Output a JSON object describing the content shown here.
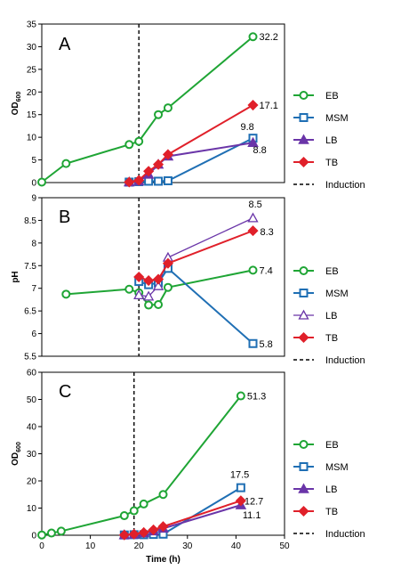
{
  "colors": {
    "EB": "#1fa535",
    "MSM": "#1f6fb4",
    "LB": "#6a35a8",
    "TB": "#e0202a",
    "induction": "#000000"
  },
  "chart_data": [
    {
      "type": "line",
      "panel_label": "A",
      "ylabel": "OD600",
      "ylabel_main": "OD",
      "ylabel_sub": "600",
      "xlabel": "",
      "xlim": [
        0,
        50
      ],
      "ylim": [
        0,
        35
      ],
      "yticks": [
        0,
        5,
        10,
        15,
        20,
        25,
        30,
        35
      ],
      "xticks": [],
      "induction_x": 20,
      "legend": [
        "EB",
        "MSM",
        "LB",
        "TB",
        "Induction"
      ],
      "legend_position": "right",
      "series": [
        {
          "name": "EB",
          "marker": "circle",
          "points": [
            [
              0,
              0.1
            ],
            [
              5,
              4.2
            ],
            [
              18,
              8.4
            ],
            [
              20,
              9.1
            ],
            [
              24,
              15.0
            ],
            [
              26,
              16.5
            ],
            [
              43.5,
              32.2
            ]
          ]
        },
        {
          "name": "MSM",
          "marker": "square",
          "points": [
            [
              18,
              0.1
            ],
            [
              20,
              0.2
            ],
            [
              22,
              0.3
            ],
            [
              24,
              0.3
            ],
            [
              26,
              0.4
            ],
            [
              43.5,
              9.8
            ]
          ]
        },
        {
          "name": "LB",
          "marker": "triangle",
          "points": [
            [
              18,
              0.1
            ],
            [
              20,
              0.3
            ],
            [
              22,
              1.8
            ],
            [
              24,
              4.0
            ],
            [
              26,
              5.8
            ],
            [
              43.5,
              8.8
            ]
          ]
        },
        {
          "name": "TB",
          "marker": "diamond",
          "points": [
            [
              18,
              0.1
            ],
            [
              20,
              0.5
            ],
            [
              22,
              2.5
            ],
            [
              24,
              4.0
            ],
            [
              26,
              6.2
            ],
            [
              43.5,
              17.1
            ]
          ]
        }
      ],
      "annotations": [
        {
          "text": "32.2",
          "x": 43.5,
          "y": 32.2
        },
        {
          "text": "17.1",
          "x": 43.5,
          "y": 17.1
        },
        {
          "text": "9.8",
          "x": 43.5,
          "y": 9.8
        },
        {
          "text": "8.8",
          "x": 43.5,
          "y": 8.8
        }
      ]
    },
    {
      "type": "line",
      "panel_label": "B",
      "ylabel": "pH",
      "xlabel": "",
      "xlim": [
        0,
        50
      ],
      "ylim": [
        5.5,
        9
      ],
      "yticks": [
        5.5,
        6,
        6.5,
        7,
        7.5,
        8,
        8.5,
        9
      ],
      "xticks": [],
      "induction_x": 20,
      "legend": [
        "EB",
        "MSM",
        "LB",
        "TB",
        "Induction"
      ],
      "legend_position": "right",
      "series": [
        {
          "name": "EB",
          "marker": "circle",
          "points": [
            [
              5,
              6.87
            ],
            [
              18,
              6.98
            ],
            [
              20,
              6.9
            ],
            [
              22,
              6.63
            ],
            [
              24,
              6.64
            ],
            [
              26,
              7.02
            ],
            [
              43.5,
              7.4
            ]
          ]
        },
        {
          "name": "MSM",
          "marker": "square",
          "points": [
            [
              20,
              7.15
            ],
            [
              22,
              7.08
            ],
            [
              24,
              7.12
            ],
            [
              26,
              7.44
            ],
            [
              43.5,
              5.78
            ]
          ]
        },
        {
          "name": "LB",
          "marker": "triangle-open",
          "points": [
            [
              20,
              6.85
            ],
            [
              22,
              6.82
            ],
            [
              24,
              7.05
            ],
            [
              26,
              7.68
            ],
            [
              43.5,
              8.55
            ]
          ]
        },
        {
          "name": "TB",
          "marker": "diamond",
          "points": [
            [
              20,
              7.25
            ],
            [
              22,
              7.17
            ],
            [
              24,
              7.2
            ],
            [
              26,
              7.55
            ],
            [
              43.5,
              8.27
            ]
          ]
        }
      ],
      "annotations": [
        {
          "text": "8.5",
          "x": 43.5,
          "y": 8.55
        },
        {
          "text": "8.3",
          "x": 43.5,
          "y": 8.27
        },
        {
          "text": "7.4",
          "x": 43.5,
          "y": 7.4
        },
        {
          "text": "5.8",
          "x": 43.5,
          "y": 5.78
        }
      ]
    },
    {
      "type": "line",
      "panel_label": "C",
      "ylabel": "OD600",
      "ylabel_main": "OD",
      "ylabel_sub": "600",
      "xlabel": "Time (h)",
      "xlim": [
        0,
        50
      ],
      "ylim": [
        0,
        60
      ],
      "yticks": [
        0,
        10,
        20,
        30,
        40,
        50,
        60
      ],
      "xticks": [
        0,
        10,
        20,
        30,
        40,
        50
      ],
      "induction_x": 19,
      "legend": [
        "EB",
        "MSM",
        "LB",
        "TB",
        "Induction"
      ],
      "legend_position": "right",
      "series": [
        {
          "name": "EB",
          "marker": "circle",
          "points": [
            [
              0,
              0.1
            ],
            [
              2,
              0.8
            ],
            [
              4,
              1.5
            ],
            [
              17,
              7.2
            ],
            [
              19,
              9.0
            ],
            [
              21,
              11.5
            ],
            [
              25,
              15.0
            ],
            [
              41,
              51.3
            ]
          ]
        },
        {
          "name": "MSM",
          "marker": "square",
          "points": [
            [
              17,
              0.1
            ],
            [
              19,
              0.2
            ],
            [
              21,
              0.2
            ],
            [
              23,
              0.3
            ],
            [
              25,
              0.4
            ],
            [
              41,
              17.5
            ]
          ]
        },
        {
          "name": "LB",
          "marker": "triangle",
          "points": [
            [
              17,
              0.1
            ],
            [
              19,
              0.3
            ],
            [
              21,
              0.8
            ],
            [
              23,
              1.5
            ],
            [
              25,
              2.5
            ],
            [
              41,
              11.1
            ]
          ]
        },
        {
          "name": "TB",
          "marker": "diamond",
          "points": [
            [
              17,
              0.1
            ],
            [
              19,
              0.4
            ],
            [
              21,
              1.0
            ],
            [
              23,
              2.0
            ],
            [
              25,
              3.2
            ],
            [
              41,
              12.7
            ]
          ]
        }
      ],
      "annotations": [
        {
          "text": "51.3",
          "x": 41,
          "y": 51.3
        },
        {
          "text": "17.5",
          "x": 41,
          "y": 17.5
        },
        {
          "text": "12.7",
          "x": 41,
          "y": 12.7
        },
        {
          "text": "11.1",
          "x": 41,
          "y": 11.1
        }
      ]
    }
  ]
}
